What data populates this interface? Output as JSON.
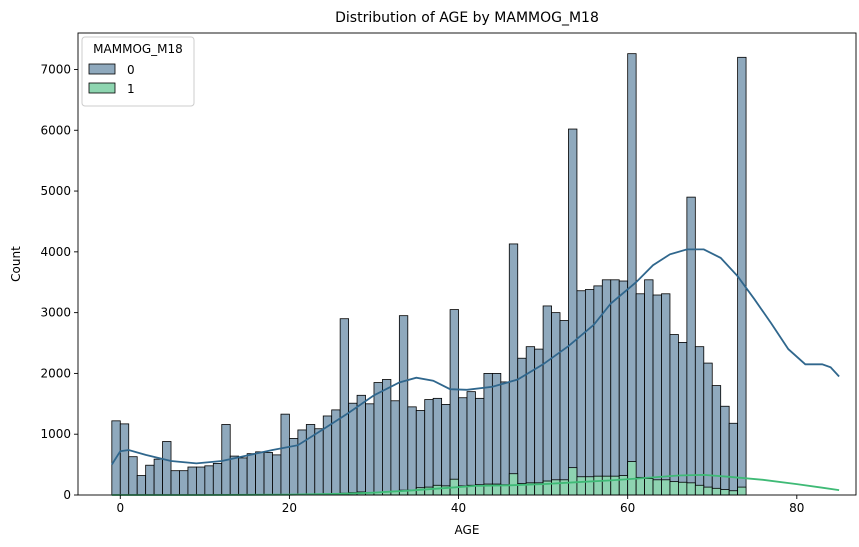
{
  "chart_data": {
    "type": "histogram",
    "title": "Distribution of AGE by MAMMOG_M18",
    "xlabel": "AGE",
    "ylabel": "Count",
    "xlim": [
      -5,
      87
    ],
    "ylim": [
      0,
      7600
    ],
    "xticks": [
      0,
      20,
      40,
      60,
      80
    ],
    "yticks": [
      0,
      1000,
      2000,
      3000,
      4000,
      5000,
      6000,
      7000
    ],
    "bin_start": -1,
    "bin_width": 1,
    "legend": {
      "title": "MAMMOG_M18",
      "position": "top-left"
    },
    "series": [
      {
        "name": "0",
        "color": "#30678d",
        "fill": "#8fa9bd",
        "values": [
          1220,
          1170,
          630,
          320,
          490,
          590,
          880,
          400,
          400,
          460,
          460,
          480,
          520,
          1160,
          640,
          610,
          680,
          710,
          700,
          660,
          1330,
          930,
          1070,
          1160,
          1090,
          1300,
          1400,
          2900,
          1510,
          1640,
          1500,
          1850,
          1900,
          1550,
          2950,
          1450,
          1390,
          1570,
          1590,
          1490,
          3050,
          1600,
          1700,
          1590,
          2000,
          2000,
          1860,
          4130,
          2250,
          2440,
          2400,
          3110,
          3000,
          2870,
          6020,
          3360,
          3380,
          3440,
          3540,
          3540,
          3520,
          7260,
          3310,
          3540,
          3290,
          3310,
          2640,
          2510,
          4900,
          2440,
          2170,
          1800,
          1460,
          1180,
          7200
        ],
        "kde": [
          [
            -1,
            500
          ],
          [
            0,
            720
          ],
          [
            1,
            740
          ],
          [
            3,
            660
          ],
          [
            6,
            560
          ],
          [
            9,
            520
          ],
          [
            12,
            560
          ],
          [
            15,
            650
          ],
          [
            18,
            740
          ],
          [
            21,
            820
          ],
          [
            24,
            1080
          ],
          [
            27,
            1350
          ],
          [
            30,
            1640
          ],
          [
            33,
            1850
          ],
          [
            35,
            1930
          ],
          [
            37,
            1880
          ],
          [
            39,
            1740
          ],
          [
            41,
            1730
          ],
          [
            44,
            1780
          ],
          [
            47,
            1900
          ],
          [
            50,
            2150
          ],
          [
            53,
            2450
          ],
          [
            56,
            2800
          ],
          [
            58,
            3150
          ],
          [
            61,
            3500
          ],
          [
            63,
            3780
          ],
          [
            65,
            3960
          ],
          [
            67,
            4040
          ],
          [
            69,
            4040
          ],
          [
            71,
            3900
          ],
          [
            73,
            3600
          ],
          [
            75,
            3220
          ],
          [
            77,
            2820
          ],
          [
            79,
            2400
          ],
          [
            81,
            2150
          ],
          [
            83,
            2150
          ],
          [
            84,
            2100
          ],
          [
            85,
            1950
          ]
        ]
      },
      {
        "name": "1",
        "color": "#3fba76",
        "fill": "#8ed5b0",
        "values": [
          0,
          0,
          0,
          0,
          0,
          0,
          0,
          0,
          0,
          0,
          0,
          0,
          0,
          0,
          0,
          0,
          0,
          0,
          0,
          0,
          0,
          0,
          0,
          0,
          0,
          10,
          20,
          30,
          40,
          50,
          40,
          40,
          50,
          60,
          80,
          80,
          120,
          130,
          160,
          150,
          260,
          150,
          160,
          170,
          180,
          180,
          170,
          350,
          190,
          200,
          200,
          230,
          250,
          250,
          450,
          300,
          300,
          310,
          310,
          310,
          320,
          550,
          290,
          270,
          250,
          250,
          220,
          210,
          200,
          160,
          130,
          110,
          90,
          70,
          130
        ],
        "kde": [
          [
            -1,
            0
          ],
          [
            10,
            0
          ],
          [
            20,
            5
          ],
          [
            26,
            20
          ],
          [
            30,
            40
          ],
          [
            34,
            70
          ],
          [
            38,
            110
          ],
          [
            42,
            150
          ],
          [
            46,
            160
          ],
          [
            50,
            180
          ],
          [
            54,
            210
          ],
          [
            58,
            240
          ],
          [
            62,
            280
          ],
          [
            66,
            320
          ],
          [
            69,
            330
          ],
          [
            72,
            300
          ],
          [
            76,
            250
          ],
          [
            80,
            180
          ],
          [
            83,
            120
          ],
          [
            85,
            80
          ]
        ]
      }
    ]
  }
}
